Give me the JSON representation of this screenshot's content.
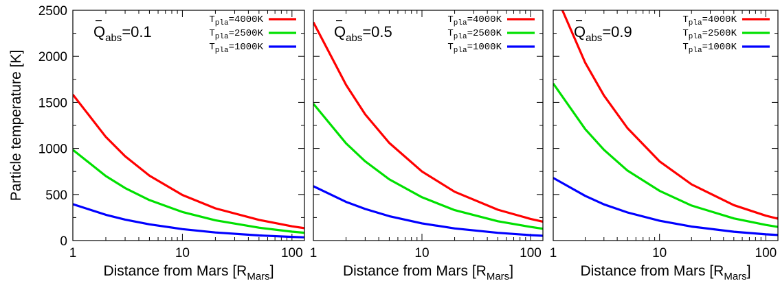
{
  "chart_data": [
    {
      "type": "line",
      "annotation": {
        "symbol": "Q",
        "subscript": "abs",
        "value": "=0.1"
      },
      "xlabel": {
        "text": "Distance from Mars [R",
        "sub": "Mars",
        "close": "]"
      },
      "ylabel": "Particle temperature [K]",
      "xscale": "log",
      "xlim": [
        1,
        130
      ],
      "ylim": [
        0,
        2500
      ],
      "xticks": [
        "1",
        "10",
        "100"
      ],
      "yticks": [
        "0",
        "500",
        "1000",
        "1500",
        "2000",
        "2500"
      ],
      "legend_position": "top-right",
      "series": [
        {
          "name": {
            "base": "T",
            "sub": "pla",
            "rest": "=4000K"
          },
          "color": "#ff0000",
          "x": [
            1,
            2,
            3,
            5,
            10,
            20,
            50,
            100,
            130
          ],
          "y": [
            1585,
            1125,
            915,
            705,
            495,
            350,
            225,
            155,
            135
          ]
        },
        {
          "name": {
            "base": "T",
            "sub": "pla",
            "rest": "=2500K"
          },
          "color": "#00e000",
          "x": [
            1,
            2,
            3,
            5,
            10,
            20,
            50,
            100,
            130
          ],
          "y": [
            985,
            700,
            570,
            440,
            310,
            220,
            140,
            97,
            85
          ]
        },
        {
          "name": {
            "base": "T",
            "sub": "pla",
            "rest": "=1000K"
          },
          "color": "#0000ff",
          "x": [
            1,
            2,
            3,
            5,
            10,
            20,
            50,
            100,
            130
          ],
          "y": [
            395,
            280,
            228,
            176,
            124,
            88,
            56,
            40,
            35
          ]
        }
      ]
    },
    {
      "type": "line",
      "annotation": {
        "symbol": "Q",
        "subscript": "abs",
        "value": "=0.5"
      },
      "xlabel": {
        "text": "Distance from Mars [R",
        "sub": "Mars",
        "close": "]"
      },
      "xscale": "log",
      "xlim": [
        1,
        130
      ],
      "ylim": [
        0,
        2500
      ],
      "xticks": [
        "1",
        "10",
        "100"
      ],
      "legend_position": "top-right",
      "series": [
        {
          "name": {
            "base": "T",
            "sub": "pla",
            "rest": "=4000K"
          },
          "color": "#ff0000",
          "x": [
            1,
            2,
            3,
            5,
            10,
            20,
            50,
            100,
            130
          ],
          "y": [
            2370,
            1690,
            1370,
            1060,
            750,
            530,
            335,
            235,
            205
          ]
        },
        {
          "name": {
            "base": "T",
            "sub": "pla",
            "rest": "=2500K"
          },
          "color": "#00e000",
          "x": [
            1,
            2,
            3,
            5,
            10,
            20,
            50,
            100,
            130
          ],
          "y": [
            1485,
            1055,
            860,
            665,
            470,
            330,
            210,
            148,
            128
          ]
        },
        {
          "name": {
            "base": "T",
            "sub": "pla",
            "rest": "=1000K"
          },
          "color": "#0000ff",
          "x": [
            1,
            2,
            3,
            5,
            10,
            20,
            50,
            100,
            130
          ],
          "y": [
            590,
            420,
            343,
            265,
            187,
            132,
            84,
            59,
            52
          ]
        }
      ]
    },
    {
      "type": "line",
      "annotation": {
        "symbol": "Q",
        "subscript": "abs",
        "value": "=0.9"
      },
      "xlabel": {
        "text": "Distance from Mars [R",
        "sub": "Mars",
        "close": "]"
      },
      "xscale": "log",
      "xlim": [
        1,
        130
      ],
      "ylim": [
        0,
        2500
      ],
      "xticks": [
        "1",
        "10",
        "100"
      ],
      "legend_position": "top-right",
      "series": [
        {
          "name": {
            "base": "T",
            "sub": "pla",
            "rest": "=4000K"
          },
          "color": "#ff0000",
          "x": [
            1,
            2,
            3,
            5,
            10,
            20,
            50,
            100,
            130
          ],
          "y": [
            2730,
            1930,
            1575,
            1220,
            860,
            610,
            385,
            270,
            237
          ]
        },
        {
          "name": {
            "base": "T",
            "sub": "pla",
            "rest": "=2500K"
          },
          "color": "#00e000",
          "x": [
            1,
            2,
            3,
            5,
            10,
            20,
            50,
            100,
            130
          ],
          "y": [
            1705,
            1210,
            985,
            760,
            540,
            380,
            240,
            170,
            148
          ]
        },
        {
          "name": {
            "base": "T",
            "sub": "pla",
            "rest": "=1000K"
          },
          "color": "#0000ff",
          "x": [
            1,
            2,
            3,
            5,
            10,
            20,
            50,
            100,
            130
          ],
          "y": [
            680,
            485,
            393,
            305,
            215,
            152,
            96,
            68,
            60
          ]
        }
      ]
    }
  ]
}
